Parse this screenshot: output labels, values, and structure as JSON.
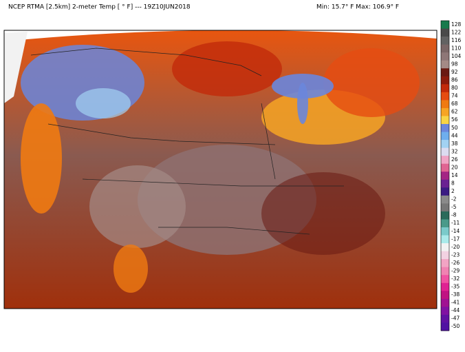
{
  "header": {
    "title": "NCEP RTMA [2.5km] 2-meter Temp [ ° F]  --- 19Z10JUN2018",
    "range": "Min: 15.7° F Max: 106.9° F"
  },
  "colorbar": {
    "items": [
      {
        "label": "128",
        "color": "#177a4c"
      },
      {
        "label": "122",
        "color": "#4a4a4a"
      },
      {
        "label": "116",
        "color": "#626262"
      },
      {
        "label": "110",
        "color": "#7a6666"
      },
      {
        "label": "104",
        "color": "#8e7777"
      },
      {
        "label": "98",
        "color": "#a48a86"
      },
      {
        "label": "92",
        "color": "#6a1a12"
      },
      {
        "label": "86",
        "color": "#8c1c0c"
      },
      {
        "label": "80",
        "color": "#c22a0a"
      },
      {
        "label": "74",
        "color": "#e64c12"
      },
      {
        "label": "68",
        "color": "#f07a12"
      },
      {
        "label": "62",
        "color": "#f6a424"
      },
      {
        "label": "56",
        "color": "#f8d444"
      },
      {
        "label": "50",
        "color": "#6a86dc"
      },
      {
        "label": "44",
        "color": "#6eaeee"
      },
      {
        "label": "38",
        "color": "#a2d2f2"
      },
      {
        "label": "32",
        "color": "#dcdcf0"
      },
      {
        "label": "26",
        "color": "#f0a4c4"
      },
      {
        "label": "20",
        "color": "#e06492"
      },
      {
        "label": "14",
        "color": "#a42484"
      },
      {
        "label": "8",
        "color": "#6a2292"
      },
      {
        "label": "2",
        "color": "#3a1c82"
      },
      {
        "label": "-2",
        "color": "#8a8a8a"
      },
      {
        "label": "-5",
        "color": "#767676"
      },
      {
        "label": "-8",
        "color": "#2a6a5a"
      },
      {
        "label": "-11",
        "color": "#4a9a8a"
      },
      {
        "label": "-14",
        "color": "#7acaca"
      },
      {
        "label": "-17",
        "color": "#aaeaea"
      },
      {
        "label": "-20",
        "color": "#f2f2f2"
      },
      {
        "label": "-23",
        "color": "#f2d2e2"
      },
      {
        "label": "-26",
        "color": "#f2a4c4"
      },
      {
        "label": "-29",
        "color": "#f082b2"
      },
      {
        "label": "-32",
        "color": "#f052a2"
      },
      {
        "label": "-35",
        "color": "#e02292"
      },
      {
        "label": "-38",
        "color": "#c01282"
      },
      {
        "label": "-41",
        "color": "#a01292"
      },
      {
        "label": "-44",
        "color": "#8012a2"
      },
      {
        "label": "-47",
        "color": "#6012a2"
      },
      {
        "label": "-50",
        "color": "#5012a2"
      }
    ]
  }
}
